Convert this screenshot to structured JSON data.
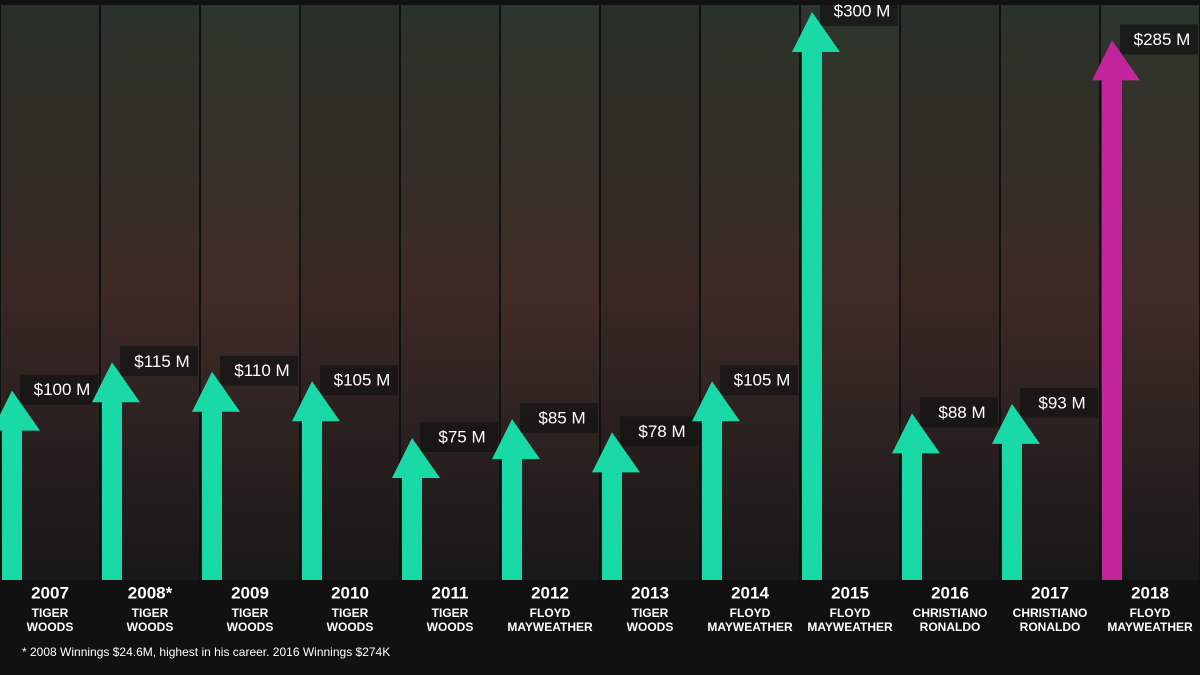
{
  "chart_data": {
    "type": "arrow-bar",
    "categories": [
      "2007",
      "2008*",
      "2009",
      "2010",
      "2011",
      "2012",
      "2013",
      "2014",
      "2015",
      "2016",
      "2017",
      "2018"
    ],
    "athletes": [
      [
        "TIGER",
        "WOODS"
      ],
      [
        "TIGER",
        "WOODS"
      ],
      [
        "TIGER",
        "WOODS"
      ],
      [
        "TIGER",
        "WOODS"
      ],
      [
        "TIGER",
        "WOODS"
      ],
      [
        "FLOYD",
        "MAYWEATHER"
      ],
      [
        "TIGER",
        "WOODS"
      ],
      [
        "FLOYD",
        "MAYWEATHER"
      ],
      [
        "FLOYD",
        "MAYWEATHER"
      ],
      [
        "CHRISTIANO",
        "RONALDO"
      ],
      [
        "CHRISTIANO",
        "RONALDO"
      ],
      [
        "FLOYD",
        "MAYWEATHER"
      ]
    ],
    "values": [
      100,
      115,
      110,
      105,
      75,
      85,
      78,
      105,
      300,
      88,
      93,
      285
    ],
    "value_labels": [
      "$100 M",
      "$115 M",
      "$110 M",
      "$105 M",
      "$75 M",
      "$85 M",
      "$78 M",
      "$105 M",
      "$300 M",
      "$88 M",
      "$93 M",
      "$285 M"
    ],
    "colors": [
      "#19d9a6",
      "#19d9a6",
      "#19d9a6",
      "#19d9a6",
      "#19d9a6",
      "#19d9a6",
      "#19d9a6",
      "#19d9a6",
      "#19d9a6",
      "#19d9a6",
      "#19d9a6",
      "#c2259c"
    ],
    "footnote": "* 2008 Winnings $24.6M, highest in his career. 2016 Winnings $274K"
  }
}
